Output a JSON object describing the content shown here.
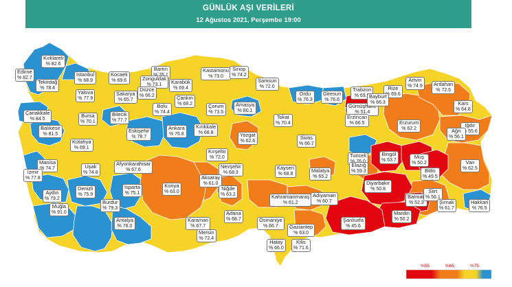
{
  "header": {
    "title": "GÜNLÜK AŞI VERİLERİ",
    "subtitle": "12 Ağustos 2021, Perşembe 19:00"
  },
  "colors": {
    "banner": "#2e9e8a",
    "below55": "#e2070f",
    "55to65": "#f07d1a",
    "65to75": "#f6d327",
    "above75": "#2a92d0"
  },
  "legend": {
    "ticks": [
      "%55",
      "%65",
      "%75"
    ]
  },
  "provinces": [
    {
      "name": "Edirne",
      "value": "% 82.7"
    },
    {
      "name": "Kırklareli",
      "value": "% 82.6"
    },
    {
      "name": "Tekirdağ",
      "value": "% 78.4"
    },
    {
      "name": "İstanbul",
      "value": "% 68.9"
    },
    {
      "name": "Kocaeli",
      "value": "% 69.6"
    },
    {
      "name": "Bartın",
      "value": "% 76.1"
    },
    {
      "name": "Zonguldak",
      "value": "% 73.1"
    },
    {
      "name": "Karabük",
      "value": "% 69.4"
    },
    {
      "name": "Kastamonu",
      "value": "% 73.0"
    },
    {
      "name": "Sinop",
      "value": "% 74.2"
    },
    {
      "name": "Samsun",
      "value": "% 72.0"
    },
    {
      "name": "Yalova",
      "value": "% 77.9"
    },
    {
      "name": "Sakarya",
      "value": "% 65.7"
    },
    {
      "name": "Düzce",
      "value": "% 66.2"
    },
    {
      "name": "Bolu",
      "value": "% 74.4"
    },
    {
      "name": "Çankırı",
      "value": "% 68.2"
    },
    {
      "name": "Çorum",
      "value": "% 73.5"
    },
    {
      "name": "Amasya",
      "value": "% 80.1"
    },
    {
      "name": "Ordu",
      "value": "% 76.3"
    },
    {
      "name": "Giresun",
      "value": "% 76.6"
    },
    {
      "name": "Trabzon",
      "value": "% 69.9"
    },
    {
      "name": "Rize",
      "value": "% 69.6"
    },
    {
      "name": "Artvin",
      "value": "% 74.9"
    },
    {
      "name": "Ardahan",
      "value": "% 72.5"
    },
    {
      "name": "Çanakkale",
      "value": "% 84.5"
    },
    {
      "name": "Bursa",
      "value": "% 70.1"
    },
    {
      "name": "Bilecik",
      "value": "% 77.7"
    },
    {
      "name": "Gümüşhane",
      "value": "% 51.4"
    },
    {
      "name": "Bayburt",
      "value": "% 66.3"
    },
    {
      "name": "Erzurum",
      "value": "% 62.2"
    },
    {
      "name": "Kars",
      "value": "% 64.8"
    },
    {
      "name": "Balıkesir",
      "value": "% 81.5"
    },
    {
      "name": "Eskişehir",
      "value": "% 78.7"
    },
    {
      "name": "Ankara",
      "value": "% 76.8"
    },
    {
      "name": "Kırıkkale",
      "value": "% 68.8"
    },
    {
      "name": "Yozgat",
      "value": "% 62.6"
    },
    {
      "name": "Tokat",
      "value": "% 70.4"
    },
    {
      "name": "Erzincan",
      "value": "% 66.5"
    },
    {
      "name": "Iğdır",
      "value": "% 55.6"
    },
    {
      "name": "Ağrı",
      "value": "% 56.1"
    },
    {
      "name": "Kütahya",
      "value": "% 69.1"
    },
    {
      "name": "Kırşehir",
      "value": "% 72.0"
    },
    {
      "name": "Sivas",
      "value": "% 66.7"
    },
    {
      "name": "Tunceli",
      "value": "% 76.0"
    },
    {
      "name": "Bingöl",
      "value": "% 53.7"
    },
    {
      "name": "Muş",
      "value": "% 50.2"
    },
    {
      "name": "Van",
      "value": "% 62.5"
    },
    {
      "name": "Manisa",
      "value": "% 74.7"
    },
    {
      "name": "Uşak",
      "value": "% 74.8"
    },
    {
      "name": "Afyonkarahisar",
      "value": "% 67.6"
    },
    {
      "name": "Nevşehir",
      "value": "% 68.3"
    },
    {
      "name": "Kayseri",
      "value": "% 68.8"
    },
    {
      "name": "Malatya",
      "value": "% 65.2"
    },
    {
      "name": "Elazığ",
      "value": "% 59.3"
    },
    {
      "name": "Bitlis",
      "value": "% 49.5"
    },
    {
      "name": "İzmir",
      "value": "% 77.8"
    },
    {
      "name": "Konya",
      "value": "% 63.0"
    },
    {
      "name": "Aksaray",
      "value": "% 61.0"
    },
    {
      "name": "Niğde",
      "value": "% 63.2"
    },
    {
      "name": "Diyarbakır",
      "value": "% 50.8"
    },
    {
      "name": "Batman",
      "value": "% 52.3"
    },
    {
      "name": "Siirt",
      "value": "% 56.1"
    },
    {
      "name": "Hakkari",
      "value": "% 76.5"
    },
    {
      "name": "Aydın",
      "value": "% 79.2"
    },
    {
      "name": "Denizli",
      "value": "% 75.9"
    },
    {
      "name": "Isparta",
      "value": "% 75.1"
    },
    {
      "name": "Kahramanmaraş",
      "value": "% 61.2"
    },
    {
      "name": "Adıyaman",
      "value": "% 60.7"
    },
    {
      "name": "Şırnak",
      "value": "% 61.7"
    },
    {
      "name": "Burdur",
      "value": "% 79.3"
    },
    {
      "name": "Muğla",
      "value": "% 91.0"
    },
    {
      "name": "Antalya",
      "value": "% 76.0"
    },
    {
      "name": "Karaman",
      "value": "% 67.7"
    },
    {
      "name": "Adana",
      "value": "% 68.7"
    },
    {
      "name": "Osmaniye",
      "value": "% 66.7"
    },
    {
      "name": "Gaziantep",
      "value": "% 63.0"
    },
    {
      "name": "Şanlıurfa",
      "value": "% 45.6"
    },
    {
      "name": "Mardin",
      "value": "% 50.2"
    },
    {
      "name": "Mersin",
      "value": "% 72.4"
    },
    {
      "name": "Kilis",
      "value": "% 71.6"
    },
    {
      "name": "Hatay",
      "value": "% 66.0"
    }
  ]
}
